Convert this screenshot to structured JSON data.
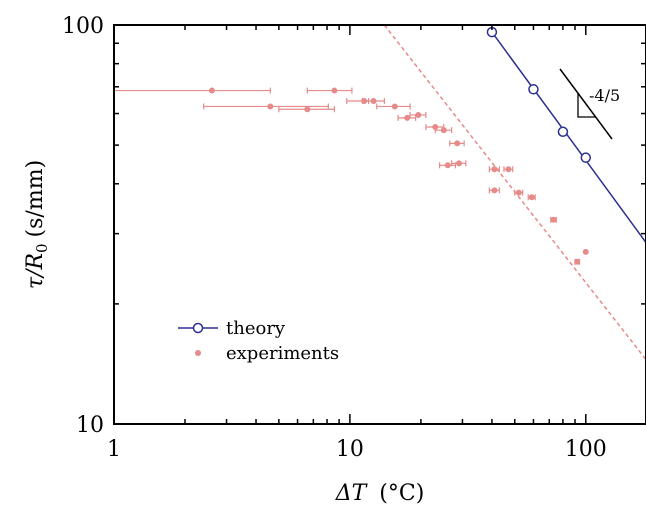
{
  "chart_data": {
    "type": "scatter",
    "xscale": "log",
    "yscale": "log",
    "xlim": [
      1,
      180
    ],
    "ylim": [
      10,
      100
    ],
    "xticks": [
      1,
      10,
      100
    ],
    "xtick_labels": [
      "1",
      "10",
      "100"
    ],
    "yticks": [
      10,
      100
    ],
    "ytick_labels": [
      "10",
      "100"
    ],
    "xlabel_base": "ΔT",
    "xlabel_unit": "(°C)",
    "ylabel_main": "τ/R",
    "ylabel_sub": "0",
    "ylabel_unit": "(s/mm)",
    "legend_position": "lower-left",
    "colors": {
      "theory": "#2b2f8f",
      "experiments": "#e68a8a"
    },
    "series": [
      {
        "name": "theory",
        "line_x": [
          40,
          180
        ],
        "line_y": [
          96,
          28.5
        ],
        "markers_x": [
          40,
          60,
          80,
          100
        ],
        "markers_y": [
          96,
          69,
          54,
          46.5
        ]
      },
      {
        "name": "experiments",
        "points": [
          {
            "x": 2.6,
            "y": 68.5,
            "xerr": [
              1.6,
              2.0
            ]
          },
          {
            "x": 4.6,
            "y": 62.5,
            "xerr": [
              2.2,
              3.5
            ]
          },
          {
            "x": 6.6,
            "y": 61.5,
            "xerr": [
              1.6,
              2.0
            ]
          },
          {
            "x": 8.6,
            "y": 68.5,
            "xerr": [
              2.0,
              1.6
            ]
          },
          {
            "x": 11.5,
            "y": 64.5,
            "xerr": [
              1.8,
              0.5
            ]
          },
          {
            "x": 12.6,
            "y": 64.5,
            "xerr": [
              1.3,
              1.4
            ]
          },
          {
            "x": 15.5,
            "y": 62.5,
            "xerr": [
              2.5,
              2.5
            ]
          },
          {
            "x": 17.5,
            "y": 58.5,
            "xerr": [
              1.5,
              1.5
            ]
          },
          {
            "x": 19.5,
            "y": 59.5,
            "xerr": [
              1.5,
              1.5
            ]
          },
          {
            "x": 23,
            "y": 55.5,
            "xerr": [
              2,
              2
            ]
          },
          {
            "x": 25,
            "y": 54.5,
            "xerr": [
              2,
              2
            ]
          },
          {
            "x": 28.5,
            "y": 50.5,
            "xerr": [
              2,
              2
            ]
          },
          {
            "x": 26,
            "y": 44.5,
            "xerr": [
              2,
              2
            ]
          },
          {
            "x": 29,
            "y": 45,
            "xerr": [
              2,
              2
            ]
          },
          {
            "x": 41,
            "y": 43.5,
            "xerr": [
              2,
              2
            ]
          },
          {
            "x": 47,
            "y": 43.5,
            "xerr": [
              2,
              2
            ]
          },
          {
            "x": 41,
            "y": 38.5,
            "xerr": [
              2,
              2
            ]
          },
          {
            "x": 52,
            "y": 38,
            "xerr": [
              2,
              2
            ]
          },
          {
            "x": 59,
            "y": 37,
            "xerr": [
              2,
              2
            ]
          },
          {
            "x": 73,
            "y": 32.5,
            "xerr": [
              2,
              2
            ]
          },
          {
            "x": 100,
            "y": 27,
            "xerr": [
              0,
              0
            ]
          },
          {
            "x": 92,
            "y": 25.5,
            "xerr": [
              2,
              2
            ]
          }
        ],
        "fit_x": [
          14,
          180
        ],
        "fit_y": [
          100,
          14.5
        ]
      }
    ],
    "annotation": {
      "text": "-4/5"
    }
  }
}
